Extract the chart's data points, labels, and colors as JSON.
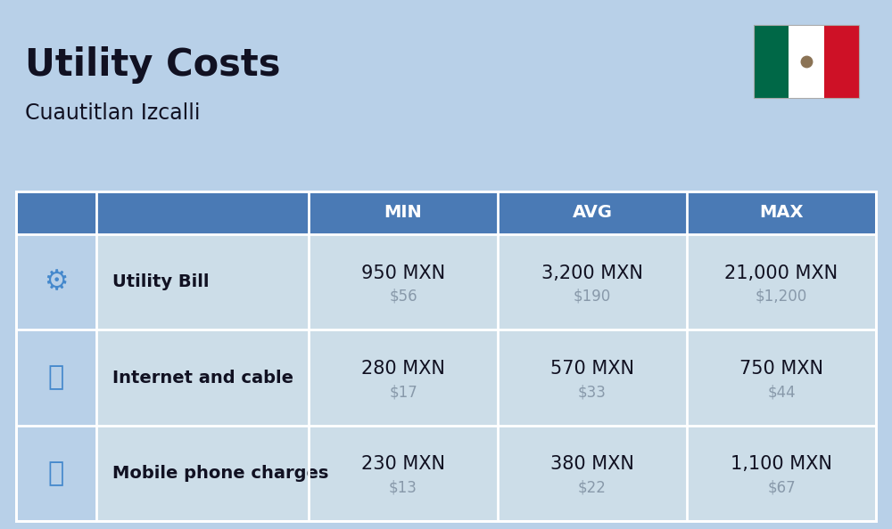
{
  "title": "Utility Costs",
  "subtitle": "Cuautitlan Izcalli",
  "background_color": "#b8d0e8",
  "header_color": "#4a7ab5",
  "header_text_color": "#ffffff",
  "row_color": "#ccdde8",
  "icon_col_color": "#b8d0e8",
  "text_color": "#111122",
  "subtext_color": "#8899aa",
  "columns": [
    "MIN",
    "AVG",
    "MAX"
  ],
  "rows": [
    {
      "label": "Utility Bill",
      "values_mxn": [
        "950 MXN",
        "3,200 MXN",
        "21,000 MXN"
      ],
      "values_usd": [
        "$56",
        "$190",
        "$1,200"
      ]
    },
    {
      "label": "Internet and cable",
      "values_mxn": [
        "280 MXN",
        "570 MXN",
        "750 MXN"
      ],
      "values_usd": [
        "$17",
        "$33",
        "$44"
      ]
    },
    {
      "label": "Mobile phone charges",
      "values_mxn": [
        "230 MXN",
        "380 MXN",
        "1,100 MXN"
      ],
      "values_usd": [
        "$13",
        "$22",
        "$67"
      ]
    }
  ],
  "flag_colors": [
    "#006847",
    "#ffffff",
    "#ce1126"
  ],
  "title_fontsize": 30,
  "subtitle_fontsize": 17,
  "header_fontsize": 14,
  "label_fontsize": 14,
  "value_fontsize": 15,
  "subvalue_fontsize": 12
}
